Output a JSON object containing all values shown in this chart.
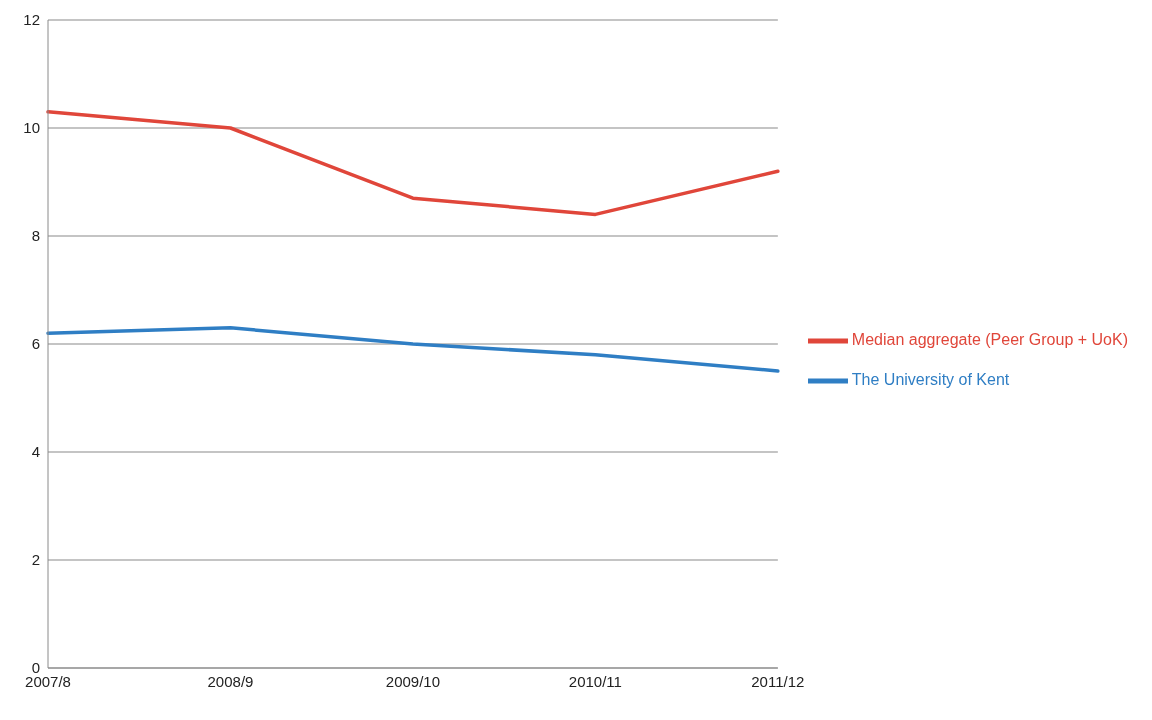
{
  "chart_data": {
    "type": "line",
    "categories": [
      "2007/8",
      "2008/9",
      "2009/10",
      "2010/11",
      "2011/12"
    ],
    "series": [
      {
        "name": "The University of Kent",
        "color": "#2f7ec4",
        "values": [
          6.2,
          6.3,
          6.0,
          5.8,
          5.5
        ]
      },
      {
        "name": "Median aggregate (Peer Group + UoK)",
        "color": "#e0463a",
        "values": [
          10.3,
          10.0,
          8.7,
          8.4,
          9.2
        ]
      }
    ],
    "ylim": [
      0,
      12
    ],
    "yticks": [
      0,
      2,
      4,
      6,
      8,
      10,
      12
    ],
    "grid": "y",
    "legend": "right",
    "marker": "none",
    "line_style": "solid"
  }
}
